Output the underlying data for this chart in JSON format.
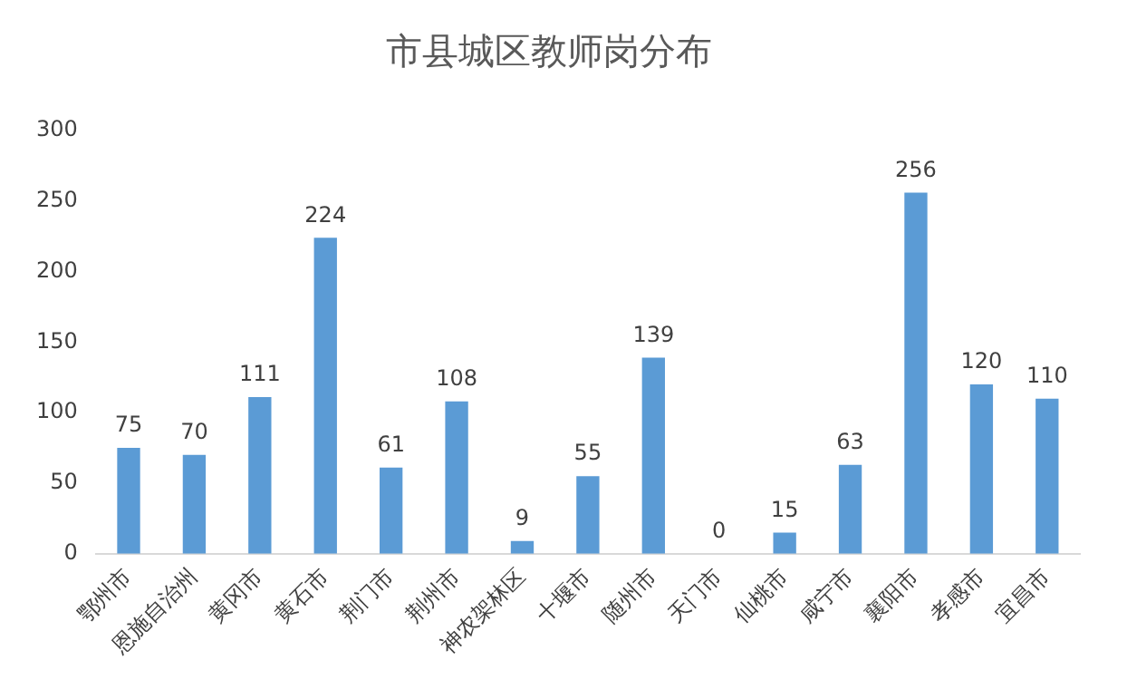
{
  "chart_data": {
    "type": "bar",
    "title": "市县城区教师岗分布",
    "categories": [
      "鄂州市",
      "恩施自治州",
      "黄冈市",
      "黄石市",
      "荆门市",
      "荆州市",
      "神农架林区",
      "十堰市",
      "随州市",
      "天门市",
      "仙桃市",
      "咸宁市",
      "襄阳市",
      "孝感市",
      "宜昌市"
    ],
    "values": [
      75,
      70,
      111,
      224,
      61,
      108,
      9,
      55,
      139,
      0,
      15,
      63,
      256,
      120,
      110
    ],
    "color": "#5b9bd5",
    "ylim": [
      0,
      300
    ],
    "yticks": [
      0,
      50,
      100,
      150,
      200,
      250,
      300
    ],
    "grid": false,
    "legend": false,
    "data_labels": true
  }
}
